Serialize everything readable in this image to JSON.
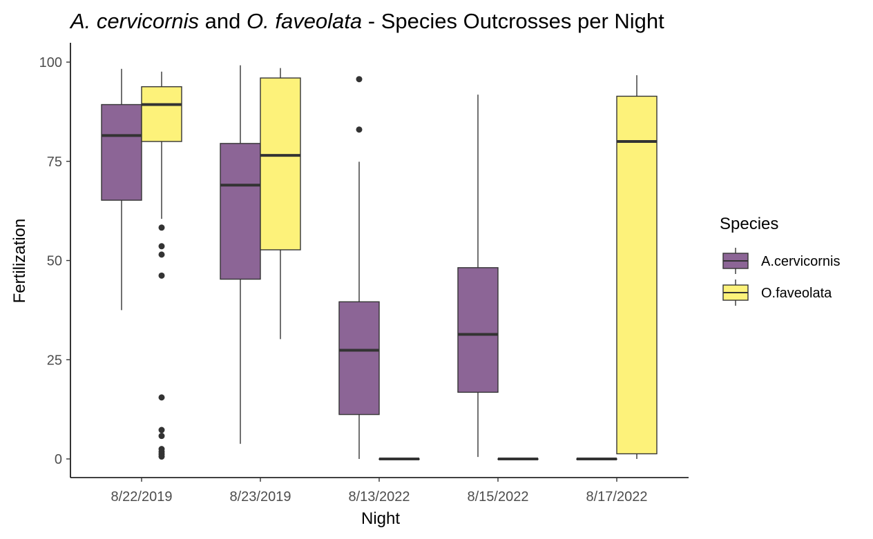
{
  "chart_data": {
    "type": "boxplot",
    "title": {
      "species1": "A. cervicornis",
      "and": " and ",
      "species2": "O. faveolata",
      "rest": " - Species Outcrosses per Night"
    },
    "xlabel": "Night",
    "ylabel": "Fertilization",
    "ylim": [
      -4.5,
      104.5
    ],
    "yticks": [
      0,
      25,
      50,
      75,
      100
    ],
    "ytick_labels": [
      "0",
      "25",
      "50",
      "75",
      "100"
    ],
    "categories": [
      "8/22/2019",
      "8/23/2019",
      "8/13/2022",
      "8/15/2022",
      "8/17/2022"
    ],
    "legend": {
      "title": "Species",
      "position": "right"
    },
    "grid": false,
    "series": [
      {
        "name": "A.cervicornis",
        "color": "#8c6596",
        "boxes": [
          {
            "category": "8/22/2019",
            "min": 37.5,
            "q1": 65.2,
            "median": 81.5,
            "q3": 89.3,
            "max": 98.3,
            "outliers": []
          },
          {
            "category": "8/23/2019",
            "min": 3.8,
            "q1": 45.3,
            "median": 69.0,
            "q3": 79.5,
            "max": 99.2,
            "outliers": []
          },
          {
            "category": "8/13/2022",
            "min": 0.0,
            "q1": 11.2,
            "median": 27.4,
            "q3": 39.6,
            "max": 74.9,
            "outliers": [
              83.0,
              95.7
            ]
          },
          {
            "category": "8/15/2022",
            "min": 0.5,
            "q1": 16.8,
            "median": 31.4,
            "q3": 48.2,
            "max": 91.8,
            "outliers": []
          },
          {
            "category": "8/17/2022",
            "min": 0.0,
            "q1": 0.0,
            "median": 0.0,
            "q3": 0.0,
            "max": 0.0,
            "outliers": []
          }
        ]
      },
      {
        "name": "O.faveolata",
        "color": "#fdf27a",
        "boxes": [
          {
            "category": "8/22/2019",
            "min": 60.5,
            "q1": 80.0,
            "median": 89.3,
            "q3": 93.8,
            "max": 97.6,
            "outliers": [
              58.3,
              53.6,
              51.5,
              46.2,
              15.5,
              7.3,
              5.8,
              2.5,
              1.8,
              1.2,
              0.6
            ]
          },
          {
            "category": "8/23/2019",
            "min": 30.2,
            "q1": 52.7,
            "median": 76.5,
            "q3": 96.0,
            "max": 98.5,
            "outliers": []
          },
          {
            "category": "8/13/2022",
            "min": 0.0,
            "q1": 0.0,
            "median": 0.0,
            "q3": 0.0,
            "max": 0.0,
            "outliers": []
          },
          {
            "category": "8/15/2022",
            "min": 0.0,
            "q1": 0.0,
            "median": 0.0,
            "q3": 0.0,
            "max": 0.0,
            "outliers": []
          },
          {
            "category": "8/17/2022",
            "min": 0.0,
            "q1": 1.3,
            "median": 80.0,
            "q3": 91.4,
            "max": 96.7,
            "outliers": []
          }
        ]
      }
    ]
  }
}
